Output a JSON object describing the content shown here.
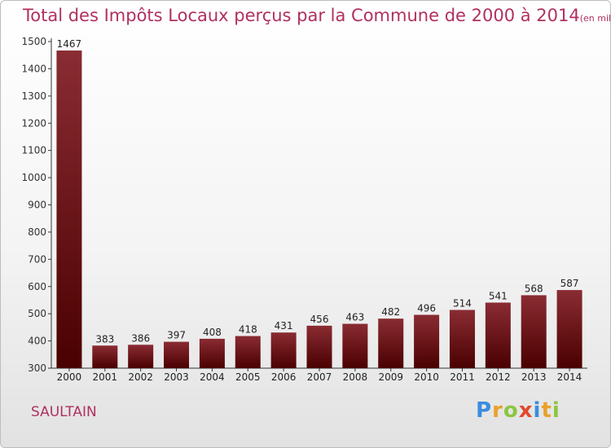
{
  "title": "Total des Impôts Locaux perçus par la Commune de 2000 à 2014",
  "title_unit": "(en milliers d'€)",
  "commune": "SAULTAIN",
  "logo_text": "Proxiti",
  "colors": {
    "title": "#b03060",
    "bar_top": "#8a2c33",
    "bar_bottom": "#4a0000",
    "axis": "#333333"
  },
  "chart_data": {
    "type": "bar",
    "title": "Total des Impôts Locaux perçus par la Commune de 2000 à 2014",
    "categories": [
      "2000",
      "2001",
      "2002",
      "2003",
      "2004",
      "2005",
      "2006",
      "2007",
      "2008",
      "2009",
      "2010",
      "2011",
      "2012",
      "2013",
      "2014"
    ],
    "values": [
      1467,
      383,
      386,
      397,
      408,
      418,
      431,
      456,
      463,
      482,
      496,
      514,
      541,
      568,
      587
    ],
    "ylim": [
      300,
      1500
    ],
    "yticks": [
      300,
      400,
      500,
      600,
      700,
      800,
      900,
      1000,
      1100,
      1200,
      1300,
      1400,
      1500
    ],
    "grid": false,
    "xlabel": "",
    "ylabel": ""
  }
}
